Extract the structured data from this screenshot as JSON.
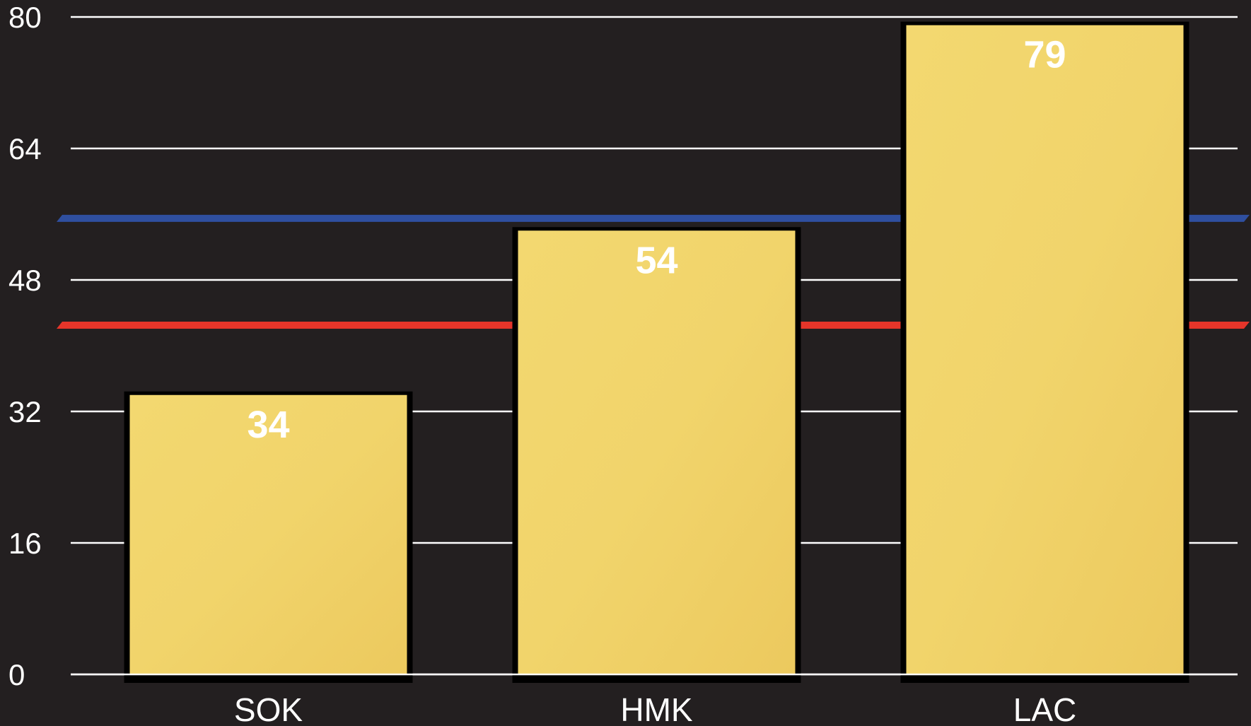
{
  "chart_data": {
    "type": "bar",
    "categories": [
      "SOK",
      "HMK",
      "LAC"
    ],
    "values": [
      34,
      54,
      79
    ],
    "data_labels": [
      "34",
      "54",
      "79"
    ],
    "yticks": [
      0,
      16,
      32,
      48,
      64,
      80
    ],
    "ylim": [
      0,
      80
    ],
    "grid": true,
    "reference_lines": [
      {
        "value": 55.5,
        "color": "#2f4f9f"
      },
      {
        "value": 42.5,
        "color": "#e5352a"
      }
    ],
    "colors": {
      "background": "#231f20",
      "bar": "#f2d36b",
      "bar_shadow": "#000000",
      "grid": "#ffffff",
      "text": "#ffffff"
    }
  }
}
